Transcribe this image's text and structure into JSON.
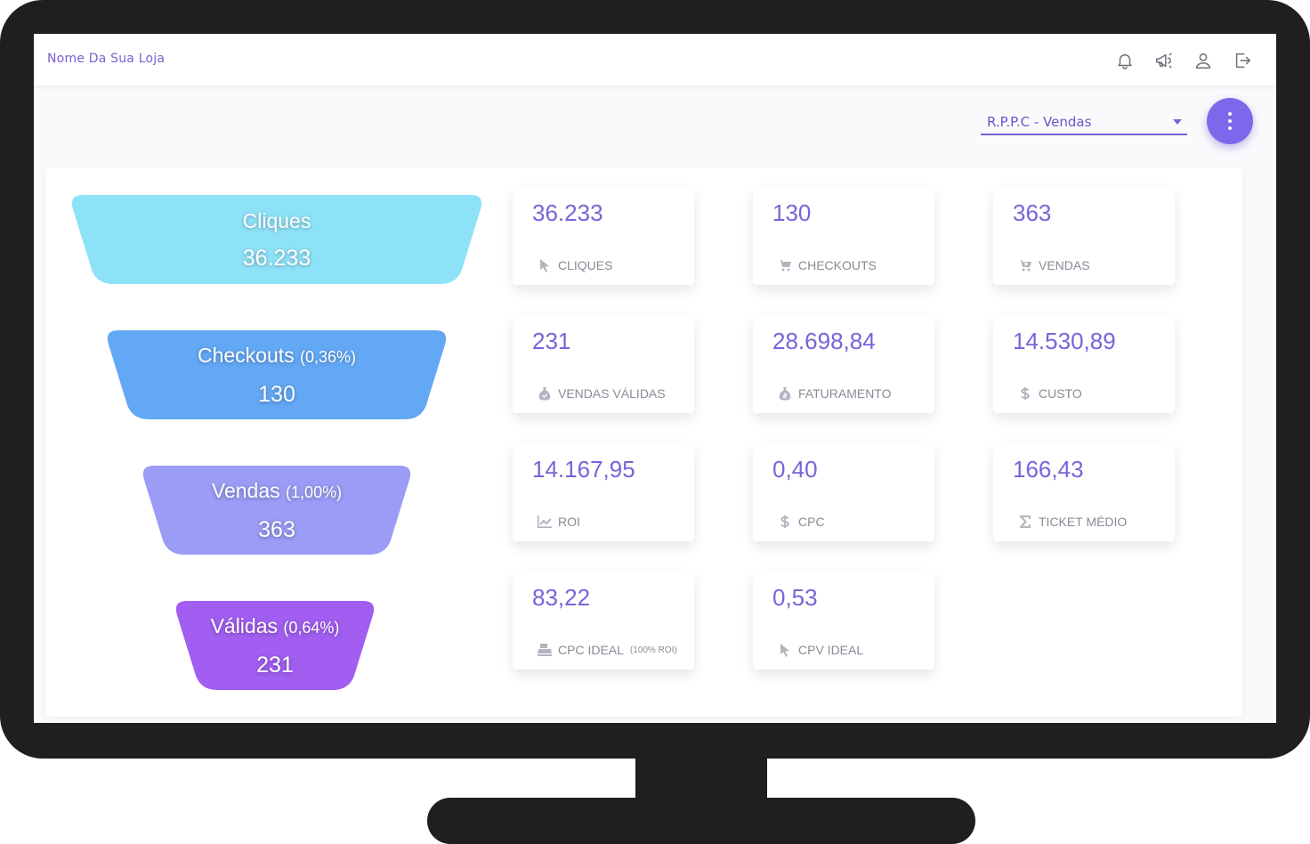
{
  "header": {
    "store_name": "Nome Da Sua Loja",
    "icons": [
      "bell-icon",
      "megaphone-icon",
      "user-icon",
      "logout-icon"
    ]
  },
  "selector": {
    "value": "R.P.P.C - Vendas"
  },
  "funnel": [
    {
      "label": "Cliques",
      "pct": "",
      "value": "36.233",
      "color": "#8ee2f8"
    },
    {
      "label": "Checkouts",
      "pct": "(0,36%)",
      "value": "130",
      "color": "#63a8f5"
    },
    {
      "label": "Vendas",
      "pct": "(1,00%)",
      "value": "363",
      "color": "#9a9cf5"
    },
    {
      "label": "Válidas",
      "pct": "(0,64%)",
      "value": "231",
      "color": "#a15ef0"
    }
  ],
  "cards": [
    {
      "value": "36.233",
      "label": "CLIQUES",
      "icon": "cursor-icon"
    },
    {
      "value": "130",
      "label": "CHECKOUTS",
      "icon": "cart-icon"
    },
    {
      "value": "363",
      "label": "VENDAS",
      "icon": "cart-plus-icon"
    },
    {
      "value": "231",
      "label": "VENDAS VÁLIDAS",
      "icon": "money-bag-check-icon"
    },
    {
      "value": "28.698,84",
      "label": "FATURAMENTO",
      "icon": "money-bag-icon"
    },
    {
      "value": "14.530,89",
      "label": "CUSTO",
      "icon": "dollar-icon"
    },
    {
      "value": "14.167,95",
      "label": "ROI",
      "icon": "chart-line-icon"
    },
    {
      "value": "0,40",
      "label": "CPC",
      "icon": "dollar-icon"
    },
    {
      "value": "166,43",
      "label": "TICKET MÉDIO",
      "icon": "sigma-icon"
    },
    {
      "value": "83,22",
      "label": "CPC IDEAL",
      "label_small": "(100% ROI)",
      "icon": "cash-register-icon"
    },
    {
      "value": "0,53",
      "label": "CPV IDEAL",
      "icon": "cursor-icon"
    }
  ]
}
